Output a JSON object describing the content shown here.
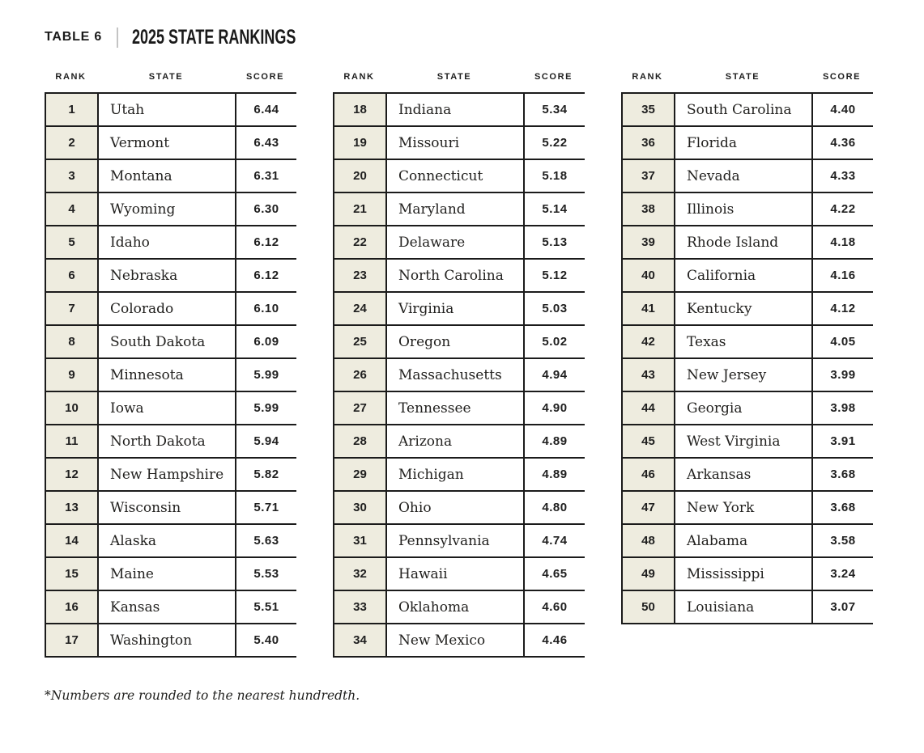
{
  "title": {
    "label": "TABLE 6",
    "heading": "2025 STATE RANKINGS"
  },
  "columns": {
    "rank": "RANK",
    "state": "STATE",
    "score": "SCORE"
  },
  "footnote": "*Numbers are rounded to the nearest hundredth.",
  "colors": {
    "rank_cell_bg": "#eeecdf",
    "border": "#1b1b1b",
    "text": "#1d1d1b",
    "divider": "#c4c4c4"
  },
  "chart_data": {
    "type": "table",
    "title": "TABLE 6 | 2025 STATE RANKINGS",
    "columns": [
      "RANK",
      "STATE",
      "SCORE"
    ],
    "note": "*Numbers are rounded to the nearest hundredth."
  },
  "tables": [
    {
      "rows": [
        {
          "rank": "1",
          "state": "Utah",
          "score": "6.44"
        },
        {
          "rank": "2",
          "state": "Vermont",
          "score": "6.43"
        },
        {
          "rank": "3",
          "state": "Montana",
          "score": "6.31"
        },
        {
          "rank": "4",
          "state": "Wyoming",
          "score": "6.30"
        },
        {
          "rank": "5",
          "state": "Idaho",
          "score": "6.12"
        },
        {
          "rank": "6",
          "state": "Nebraska",
          "score": "6.12"
        },
        {
          "rank": "7",
          "state": "Colorado",
          "score": "6.10"
        },
        {
          "rank": "8",
          "state": "South Dakota",
          "score": "6.09"
        },
        {
          "rank": "9",
          "state": "Minnesota",
          "score": "5.99"
        },
        {
          "rank": "10",
          "state": "Iowa",
          "score": "5.99"
        },
        {
          "rank": "11",
          "state": "North Dakota",
          "score": "5.94"
        },
        {
          "rank": "12",
          "state": "New Hampshire",
          "score": "5.82"
        },
        {
          "rank": "13",
          "state": "Wisconsin",
          "score": "5.71"
        },
        {
          "rank": "14",
          "state": "Alaska",
          "score": "5.63"
        },
        {
          "rank": "15",
          "state": "Maine",
          "score": "5.53"
        },
        {
          "rank": "16",
          "state": "Kansas",
          "score": "5.51"
        },
        {
          "rank": "17",
          "state": "Washington",
          "score": "5.40"
        }
      ]
    },
    {
      "rows": [
        {
          "rank": "18",
          "state": "Indiana",
          "score": "5.34"
        },
        {
          "rank": "19",
          "state": "Missouri",
          "score": "5.22"
        },
        {
          "rank": "20",
          "state": "Connecticut",
          "score": "5.18"
        },
        {
          "rank": "21",
          "state": "Maryland",
          "score": "5.14"
        },
        {
          "rank": "22",
          "state": "Delaware",
          "score": "5.13"
        },
        {
          "rank": "23",
          "state": "North Carolina",
          "score": "5.12"
        },
        {
          "rank": "24",
          "state": "Virginia",
          "score": "5.03"
        },
        {
          "rank": "25",
          "state": "Oregon",
          "score": "5.02"
        },
        {
          "rank": "26",
          "state": "Massachusetts",
          "score": "4.94"
        },
        {
          "rank": "27",
          "state": "Tennessee",
          "score": "4.90"
        },
        {
          "rank": "28",
          "state": "Arizona",
          "score": "4.89"
        },
        {
          "rank": "29",
          "state": "Michigan",
          "score": "4.89"
        },
        {
          "rank": "30",
          "state": "Ohio",
          "score": "4.80"
        },
        {
          "rank": "31",
          "state": "Pennsylvania",
          "score": "4.74"
        },
        {
          "rank": "32",
          "state": "Hawaii",
          "score": "4.65"
        },
        {
          "rank": "33",
          "state": "Oklahoma",
          "score": "4.60"
        },
        {
          "rank": "34",
          "state": "New Mexico",
          "score": "4.46"
        }
      ]
    },
    {
      "rows": [
        {
          "rank": "35",
          "state": "South Carolina",
          "score": "4.40"
        },
        {
          "rank": "36",
          "state": "Florida",
          "score": "4.36"
        },
        {
          "rank": "37",
          "state": "Nevada",
          "score": "4.33"
        },
        {
          "rank": "38",
          "state": "Illinois",
          "score": "4.22"
        },
        {
          "rank": "39",
          "state": "Rhode Island",
          "score": "4.18"
        },
        {
          "rank": "40",
          "state": "California",
          "score": "4.16"
        },
        {
          "rank": "41",
          "state": "Kentucky",
          "score": "4.12"
        },
        {
          "rank": "42",
          "state": "Texas",
          "score": "4.05"
        },
        {
          "rank": "43",
          "state": "New Jersey",
          "score": "3.99"
        },
        {
          "rank": "44",
          "state": "Georgia",
          "score": "3.98"
        },
        {
          "rank": "45",
          "state": "West Virginia",
          "score": "3.91"
        },
        {
          "rank": "46",
          "state": "Arkansas",
          "score": "3.68"
        },
        {
          "rank": "47",
          "state": "New York",
          "score": "3.68"
        },
        {
          "rank": "48",
          "state": "Alabama",
          "score": "3.58"
        },
        {
          "rank": "49",
          "state": "Mississippi",
          "score": "3.24"
        },
        {
          "rank": "50",
          "state": "Louisiana",
          "score": "3.07"
        }
      ]
    }
  ]
}
